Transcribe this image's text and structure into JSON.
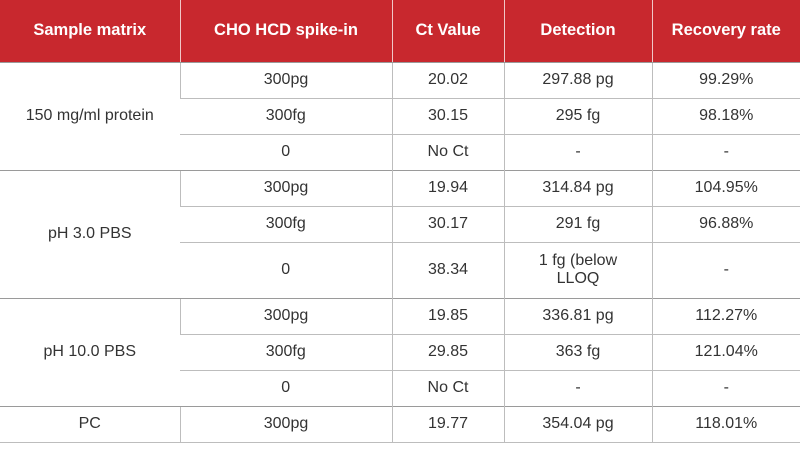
{
  "headers": [
    "Sample matrix",
    "CHO HCD spike-in",
    "Ct Value",
    "Detection",
    "Recovery rate"
  ],
  "groups": [
    {
      "matrix": "150 mg/ml protein",
      "rows": [
        {
          "spike": "300pg",
          "ct": "20.02",
          "detection": "297.88 pg",
          "recovery": "99.29%"
        },
        {
          "spike": "300fg",
          "ct": "30.15",
          "detection": "295 fg",
          "recovery": "98.18%"
        },
        {
          "spike": "0",
          "ct": "No Ct",
          "detection": "-",
          "recovery": "-"
        }
      ]
    },
    {
      "matrix": "pH 3.0 PBS",
      "rows": [
        {
          "spike": "300pg",
          "ct": "19.94",
          "detection": "314.84 pg",
          "recovery": "104.95%"
        },
        {
          "spike": "300fg",
          "ct": "30.17",
          "detection": "291 fg",
          "recovery": "96.88%"
        },
        {
          "spike": "0",
          "ct": "38.34",
          "detection": "1 fg (below LLOQ",
          "recovery": "-"
        }
      ]
    },
    {
      "matrix": "pH 10.0 PBS",
      "rows": [
        {
          "spike": "300pg",
          "ct": "19.85",
          "detection": "336.81 pg",
          "recovery": "112.27%"
        },
        {
          "spike": "300fg",
          "ct": "29.85",
          "detection": "363 fg",
          "recovery": "121.04%"
        },
        {
          "spike": "0",
          "ct": "No Ct",
          "detection": "-",
          "recovery": "-"
        }
      ]
    },
    {
      "matrix": "PC",
      "rows": [
        {
          "spike": "300pg",
          "ct": "19.77",
          "detection": "354.04 pg",
          "recovery": "118.01%"
        }
      ]
    }
  ],
  "colors": {
    "header_bg": "#c8282e",
    "header_text": "#ffffff",
    "body_text": "#333333",
    "grid": "#bdbdbd"
  }
}
